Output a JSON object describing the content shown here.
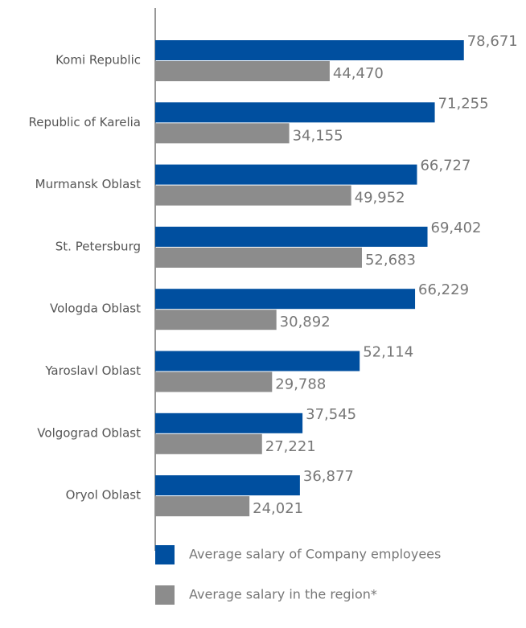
{
  "chart_data": {
    "type": "bar",
    "orientation": "horizontal",
    "categories": [
      "Komi Republic",
      "Republic of Karelia",
      "Murmansk Oblast",
      "St. Petersburg",
      "Vologda Oblast",
      "Yaroslavl Oblast",
      "Volgograd Oblast",
      "Oryol Oblast"
    ],
    "series": [
      {
        "name": "Average salary of Company employees",
        "color": "#004f9f",
        "values": [
          78671,
          71255,
          66727,
          69402,
          66229,
          52114,
          37545,
          36877
        ],
        "value_labels": [
          "78,671",
          "71,255",
          "66,727",
          "69,402",
          "66,229",
          "52,114",
          "37,545",
          "36,877"
        ]
      },
      {
        "name": "Average salary in the region*",
        "color": "#8c8c8c",
        "values": [
          44470,
          34155,
          49952,
          52683,
          30892,
          29788,
          27221,
          24021
        ],
        "value_labels": [
          "44,470",
          "34,155",
          "49,952",
          "52,683",
          "30,892",
          "29,788",
          "27,221",
          "24,021"
        ]
      }
    ],
    "xlim": [
      0,
      90000
    ]
  }
}
